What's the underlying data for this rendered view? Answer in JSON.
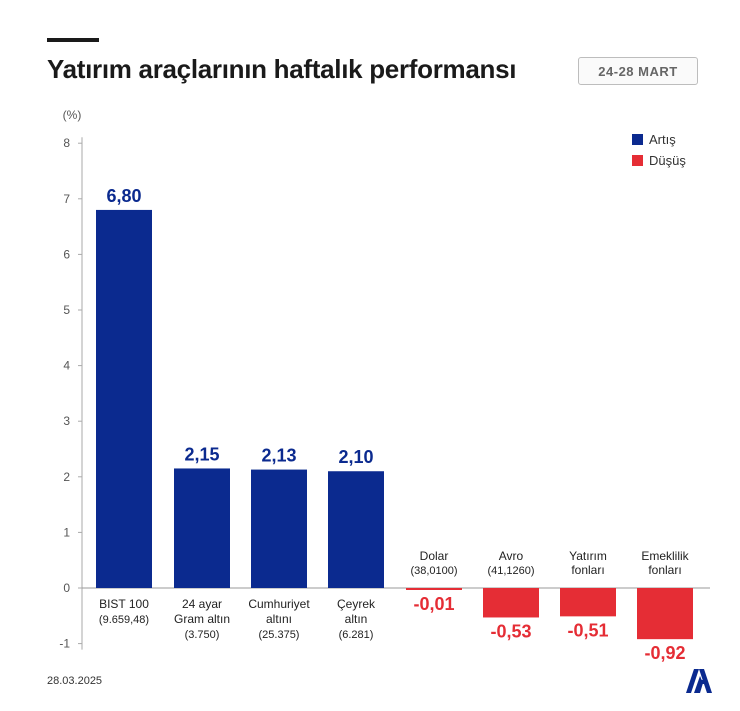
{
  "header": {
    "title": "Yatırım araçlarının haftalık performansı",
    "date_range": "24-28 MART"
  },
  "footer": {
    "date": "28.03.2025",
    "logo_icon": "aa-logo-icon"
  },
  "colors": {
    "increase": "#0b2a8f",
    "decrease": "#e52d35"
  },
  "chart_data": {
    "type": "bar",
    "title": "Yatırım araçlarının haftalık performansı",
    "ylabel": "(%)",
    "ylim": [
      -1,
      8
    ],
    "yticks": [
      "-1",
      "0",
      "1",
      "2",
      "3",
      "4",
      "5",
      "6",
      "7",
      "8"
    ],
    "grid": false,
    "legend_position": "top-right",
    "legend": [
      {
        "label": "Artış",
        "color": "#0b2a8f"
      },
      {
        "label": "Düşüş",
        "color": "#e52d35"
      }
    ],
    "categories": [
      {
        "lines": [
          "BIST 100",
          "(9.659,48)"
        ]
      },
      {
        "lines": [
          "24 ayar",
          "Gram altın",
          "(3.750)"
        ]
      },
      {
        "lines": [
          "Cumhuriyet",
          "altını",
          "(25.375)"
        ]
      },
      {
        "lines": [
          "Çeyrek",
          "altın",
          "(6.281)"
        ]
      },
      {
        "lines": [
          "Dolar",
          "(38,0100)"
        ]
      },
      {
        "lines": [
          "Avro",
          "(41,1260)"
        ]
      },
      {
        "lines": [
          "Yatırım",
          "fonları"
        ]
      },
      {
        "lines": [
          "Emeklilik",
          "fonları"
        ]
      }
    ],
    "values": [
      6.8,
      2.15,
      2.13,
      2.1,
      -0.01,
      -0.53,
      -0.51,
      -0.92
    ],
    "value_labels": [
      "6,80",
      "2,15",
      "2,13",
      "2,10",
      "-0,01",
      "-0,53",
      "-0,51",
      "-0,92"
    ]
  }
}
